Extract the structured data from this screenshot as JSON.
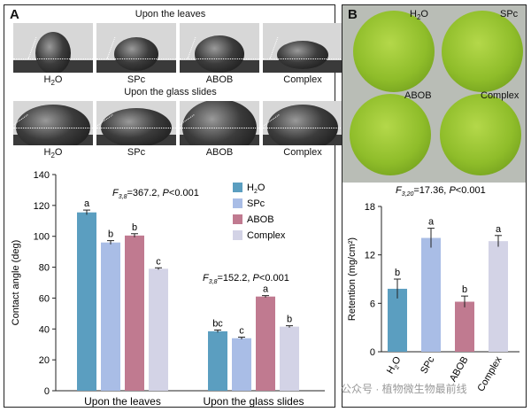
{
  "panel_a": {
    "label": "A",
    "leaves_title": "Upon the leaves",
    "glass_title": "Upon the glass slides",
    "photo_captions": [
      "H2O",
      "SPc",
      "ABOB",
      "Complex"
    ]
  },
  "panel_b": {
    "label": "B",
    "photo_labels": [
      "H2O",
      "SPc",
      "ABOB",
      "Complex"
    ]
  },
  "watermark": "公众号 · 植物微生物最前线",
  "colors": {
    "H2O": "#5b9ec0",
    "SPc": "#a9bde6",
    "ABOB": "#c07a90",
    "Complex": "#d3d3e6"
  },
  "chart_data": [
    {
      "type": "bar",
      "ylabel": "Contact angle (deg)",
      "ylim": [
        0,
        140
      ],
      "yticks": [
        0,
        20,
        40,
        60,
        80,
        100,
        120,
        140
      ],
      "groups": [
        "Upon the leaves",
        "Upon the glass slides"
      ],
      "series": [
        {
          "name": "H2O",
          "values": [
            115.5,
            38.5
          ],
          "errors": [
            1.5,
            0.8
          ],
          "letters": [
            "a",
            "bc"
          ]
        },
        {
          "name": "SPc",
          "values": [
            96,
            34
          ],
          "errors": [
            1.2,
            0.7
          ],
          "letters": [
            "b",
            "c"
          ]
        },
        {
          "name": "ABOB",
          "values": [
            100.5,
            61
          ],
          "errors": [
            1.2,
            0.6
          ],
          "letters": [
            "b",
            "a"
          ]
        },
        {
          "name": "Complex",
          "values": [
            79,
            41.5
          ],
          "errors": [
            0.6,
            0.6
          ],
          "letters": [
            "c",
            "b"
          ]
        }
      ],
      "legend_position": "top-right",
      "annotations": [
        {
          "stat": "F",
          "sub": "3,8",
          "value": "=367.2, ",
          "p": "P",
          "ptext": "<0.001"
        },
        {
          "stat": "F",
          "sub": "3,8",
          "value": "=152.2, ",
          "p": "P",
          "ptext": "<0.001"
        }
      ]
    },
    {
      "type": "bar",
      "ylabel": "Retention (mg/cm²)",
      "ylim": [
        0,
        18
      ],
      "yticks": [
        0,
        6,
        12,
        18
      ],
      "categories": [
        "H2O",
        "SPc",
        "ABOB",
        "Complex"
      ],
      "values": [
        7.8,
        14.1,
        6.2,
        13.7
      ],
      "errors": [
        1.2,
        1.2,
        0.7,
        0.7
      ],
      "letters": [
        "b",
        "a",
        "b",
        "a"
      ],
      "annotation": {
        "stat": "F",
        "sub": "3,20",
        "value": "=17.36, ",
        "p": "P",
        "ptext": "<0.001"
      }
    }
  ]
}
